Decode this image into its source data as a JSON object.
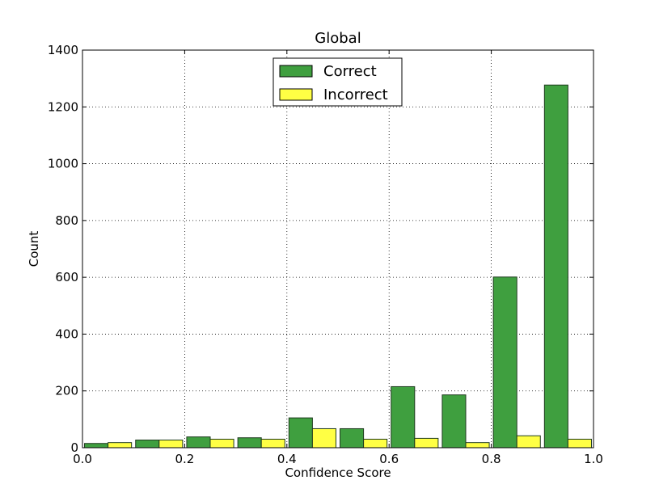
{
  "chart_data": {
    "type": "bar",
    "title": "Global",
    "xlabel": "Confidence Score",
    "ylabel": "Count",
    "xlim": [
      0.0,
      1.0
    ],
    "ylim": [
      0,
      1400
    ],
    "x_ticks": [
      "0.0",
      "0.2",
      "0.4",
      "0.6",
      "0.8",
      "1.0"
    ],
    "y_ticks": [
      "0",
      "200",
      "400",
      "600",
      "800",
      "1000",
      "1200",
      "1400"
    ],
    "bin_edges": [
      0.0,
      0.1,
      0.2,
      0.3,
      0.4,
      0.5,
      0.6,
      0.7,
      0.8,
      0.9,
      1.0
    ],
    "grid": true,
    "legend_position": "top-center",
    "series": [
      {
        "name": "Correct",
        "color": "#3f9f3f",
        "values": [
          15,
          27,
          38,
          35,
          105,
          67,
          215,
          186,
          601,
          1277
        ]
      },
      {
        "name": "Incorrect",
        "color": "#ffff44",
        "values": [
          18,
          27,
          30,
          30,
          67,
          30,
          33,
          18,
          42,
          30
        ]
      }
    ]
  }
}
